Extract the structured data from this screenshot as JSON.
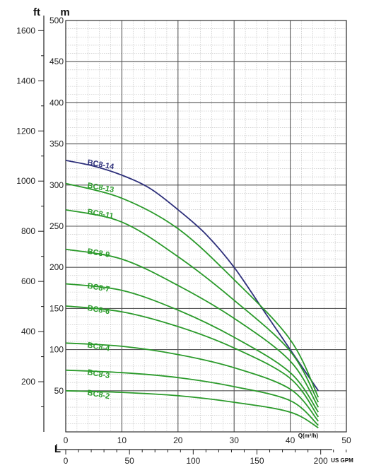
{
  "chart_data": {
    "type": "line",
    "axes": {
      "head_left_unit": "ft",
      "head_right_unit": "m",
      "flow_bottom_unit": "L",
      "flow_m3h_label": "Q(m³/h)",
      "flow_gpm_label": "US GPM",
      "head_m_ticks": [
        "50",
        "100",
        "150",
        "200",
        "250",
        "300",
        "350",
        "400",
        "450",
        "500"
      ],
      "head_ft_ticks": [
        "200",
        "400",
        "600",
        "800",
        "1000",
        "1200",
        "1400",
        "1600"
      ],
      "flow_m3h_ticks": [
        "0",
        "10",
        "20",
        "30",
        "40",
        "50"
      ],
      "flow_gpm_ticks": [
        "0",
        "50",
        "100",
        "150",
        "200"
      ],
      "head_m_range": [
        0,
        500
      ],
      "flow_m3h_range": [
        0,
        50
      ]
    },
    "grid": true,
    "x_unit": "m3/h",
    "y_unit": "m",
    "colors": {
      "main_curve": "#2d2f7a",
      "curves": "#2a9a2a",
      "grid_major": "#555555",
      "grid_minor": "#bdbdbd"
    },
    "series": [
      {
        "name": "BC8-14",
        "main": true,
        "points": [
          [
            0,
            330
          ],
          [
            5,
            323
          ],
          [
            10,
            312
          ],
          [
            15,
            296
          ],
          [
            20,
            270
          ],
          [
            25,
            240
          ],
          [
            30,
            200
          ],
          [
            35,
            150
          ],
          [
            40,
            100
          ],
          [
            45,
            50
          ]
        ]
      },
      {
        "name": "BC8-13",
        "points": [
          [
            0,
            302
          ],
          [
            10,
            284
          ],
          [
            20,
            247
          ],
          [
            30,
            185
          ],
          [
            40,
            112
          ],
          [
            45,
            42
          ]
        ]
      },
      {
        "name": "BC8-11",
        "points": [
          [
            0,
            270
          ],
          [
            10,
            255
          ],
          [
            20,
            213
          ],
          [
            30,
            160
          ],
          [
            40,
            98
          ],
          [
            45,
            36
          ]
        ]
      },
      {
        "name": "BC8-9",
        "points": [
          [
            0,
            222
          ],
          [
            10,
            210
          ],
          [
            20,
            178
          ],
          [
            30,
            138
          ],
          [
            40,
            86
          ],
          [
            45,
            30
          ]
        ]
      },
      {
        "name": "BC8-7",
        "points": [
          [
            0,
            180
          ],
          [
            10,
            172
          ],
          [
            20,
            148
          ],
          [
            30,
            115
          ],
          [
            40,
            72
          ],
          [
            45,
            24
          ]
        ]
      },
      {
        "name": "BC8-6",
        "points": [
          [
            0,
            153
          ],
          [
            10,
            146
          ],
          [
            20,
            128
          ],
          [
            30,
            102
          ],
          [
            40,
            65
          ],
          [
            45,
            18
          ]
        ]
      },
      {
        "name": "BC8-4",
        "points": [
          [
            0,
            108
          ],
          [
            10,
            104
          ],
          [
            20,
            94
          ],
          [
            30,
            78
          ],
          [
            40,
            52
          ],
          [
            45,
            13
          ]
        ]
      },
      {
        "name": "BC8-3",
        "points": [
          [
            0,
            75
          ],
          [
            10,
            72
          ],
          [
            20,
            66
          ],
          [
            30,
            55
          ],
          [
            40,
            38
          ],
          [
            45,
            8
          ]
        ]
      },
      {
        "name": "BC8-2",
        "points": [
          [
            0,
            50
          ],
          [
            10,
            48
          ],
          [
            20,
            44
          ],
          [
            30,
            36
          ],
          [
            40,
            24
          ],
          [
            45,
            5
          ]
        ]
      }
    ]
  }
}
